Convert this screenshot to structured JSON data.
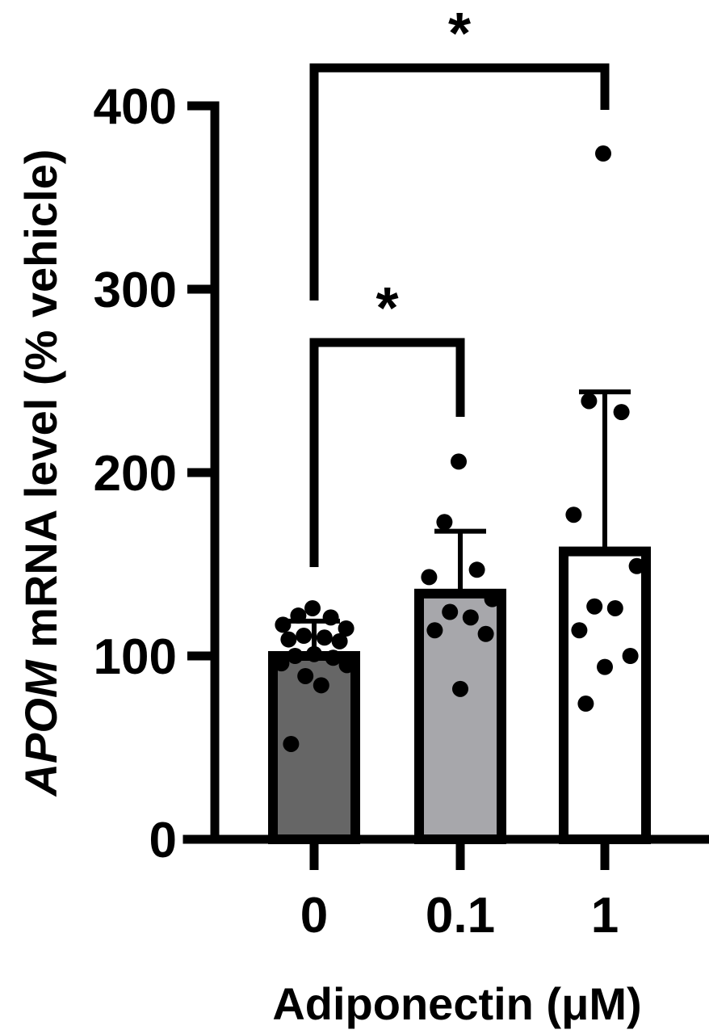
{
  "chart_data": {
    "type": "bar",
    "categories": [
      "0",
      "0.1",
      "1"
    ],
    "xlabel": "Adiponectin (μM)",
    "ylabel": {
      "gene": "APOM",
      "rest": " mRNA level (% vehicle)"
    },
    "ylim": [
      0,
      400
    ],
    "yticks": [
      0,
      100,
      200,
      300,
      400
    ],
    "grid": false,
    "bars": [
      {
        "category": "0",
        "mean": 100,
        "sd_upper": 119,
        "fill": "#666666",
        "points": [
          126,
          122,
          121,
          117,
          115,
          111,
          110,
          109,
          108,
          101,
          100,
          99,
          96,
          95,
          89,
          84,
          52
        ]
      },
      {
        "category": "0.1",
        "mean": 134,
        "sd_upper": 168,
        "fill": "#a7a7ab",
        "points": [
          206,
          173,
          147,
          143,
          131,
          124,
          121,
          114,
          112,
          82
        ]
      },
      {
        "category": "1",
        "mean": 157,
        "sd_upper": 244,
        "fill": "#ffffff",
        "points": [
          374,
          239,
          233,
          177,
          149,
          127,
          126,
          114,
          100,
          94,
          74
        ]
      }
    ],
    "significance": [
      {
        "from": "0",
        "to": "0.1",
        "label": "*"
      },
      {
        "from": "0",
        "to": "1",
        "label": "*"
      }
    ]
  }
}
